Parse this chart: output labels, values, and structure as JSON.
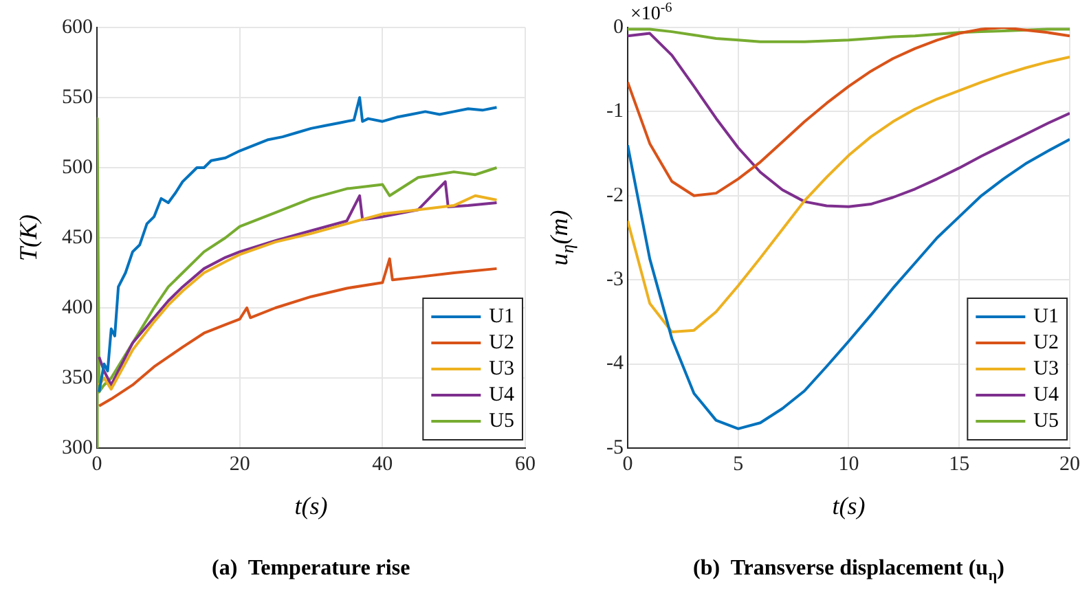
{
  "chart_data": [
    {
      "type": "line",
      "title": "(a)  Temperature rise",
      "xlabel": "t(s)",
      "ylabel": "T(K)",
      "xlim": [
        0,
        60
      ],
      "xticks": [
        0,
        20,
        40,
        60
      ],
      "ylim": [
        300,
        600
      ],
      "yticks": [
        300,
        350,
        400,
        450,
        500,
        550,
        600
      ],
      "grid": true,
      "legend": "bottom right",
      "marker": "none",
      "line_style": "solid",
      "series": [
        {
          "name": "U1",
          "color": "#0072bd",
          "x": [
            0.3,
            1,
            1.5,
            2,
            2.5,
            3,
            4,
            5,
            6,
            7,
            8,
            9,
            10,
            11,
            12,
            13,
            14,
            15,
            16,
            18,
            20,
            22,
            24,
            26,
            28,
            30,
            32,
            34,
            36,
            36.8,
            37.2,
            38,
            40,
            42,
            44,
            46,
            48,
            50,
            52,
            54,
            56
          ],
          "values": [
            340,
            360,
            355,
            385,
            380,
            415,
            425,
            440,
            445,
            460,
            465,
            478,
            475,
            482,
            490,
            495,
            500,
            500,
            505,
            507,
            512,
            516,
            520,
            522,
            525,
            528,
            530,
            532,
            534,
            550,
            533,
            535,
            533,
            536,
            538,
            540,
            538,
            540,
            542,
            541,
            543
          ]
        },
        {
          "name": "U2",
          "color": "#d95319",
          "x": [
            0.3,
            2,
            5,
            8,
            10,
            12,
            15,
            18,
            20,
            21,
            21.5,
            25,
            30,
            35,
            40,
            41,
            41.4,
            45,
            50,
            56
          ],
          "values": [
            330,
            335,
            345,
            358,
            365,
            372,
            382,
            388,
            392,
            400,
            393,
            400,
            408,
            414,
            418,
            435,
            420,
            422,
            425,
            428
          ]
        },
        {
          "name": "U3",
          "color": "#edb120",
          "x": [
            0.3,
            1,
            2,
            5,
            8,
            10,
            12,
            15,
            18,
            20,
            25,
            30,
            35,
            40,
            45,
            50,
            53,
            56
          ],
          "values": [
            345,
            350,
            342,
            370,
            390,
            402,
            412,
            425,
            433,
            438,
            447,
            453,
            460,
            467,
            470,
            473,
            480,
            477
          ]
        },
        {
          "name": "U4",
          "color": "#7e2f8e",
          "x": [
            0.3,
            1,
            2,
            5,
            8,
            10,
            12,
            15,
            18,
            20,
            25,
            30,
            35,
            36.8,
            37.2,
            40,
            45,
            48.8,
            49.2,
            52,
            56
          ],
          "values": [
            365,
            355,
            345,
            375,
            393,
            405,
            415,
            428,
            436,
            440,
            448,
            455,
            462,
            480,
            463,
            465,
            470,
            490,
            472,
            473,
            475
          ]
        },
        {
          "name": "U5",
          "color": "#77ac30",
          "x": [
            0,
            0.05,
            0.3,
            1,
            2,
            5,
            8,
            10,
            12,
            15,
            18,
            20,
            25,
            30,
            35,
            40,
            41,
            45,
            50,
            53,
            56
          ],
          "values": [
            300,
            535,
            340,
            345,
            350,
            375,
            400,
            415,
            425,
            440,
            450,
            458,
            468,
            478,
            485,
            488,
            480,
            493,
            497,
            495,
            500
          ]
        }
      ]
    },
    {
      "type": "line",
      "title": "(b)  Transverse displacement (u$_{η}$)",
      "xlabel": "t(s)",
      "ylabel": "u$_{η}$(m)",
      "annotations": [
        "×10$^{-6}$"
      ],
      "xlim": [
        0,
        20
      ],
      "xticks": [
        0,
        5,
        10,
        15,
        20
      ],
      "ylim": [
        -5,
        0
      ],
      "yticks": [
        -5,
        -4,
        -3,
        -2,
        -1,
        0
      ],
      "grid": true,
      "legend": "bottom right",
      "marker": "none",
      "line_style": "solid",
      "x": [
        0,
        1,
        2,
        3,
        4,
        5,
        6,
        7,
        8,
        9,
        10,
        11,
        12,
        13,
        14,
        15,
        16,
        17,
        18,
        19,
        20
      ],
      "series": [
        {
          "name": "U1",
          "color": "#0072bd",
          "values": [
            -1.4,
            -2.75,
            -3.7,
            -4.35,
            -4.67,
            -4.77,
            -4.7,
            -4.53,
            -4.32,
            -4.03,
            -3.73,
            -3.42,
            -3.1,
            -2.8,
            -2.5,
            -2.25,
            -2.0,
            -1.8,
            -1.62,
            -1.47,
            -1.33
          ]
        },
        {
          "name": "U2",
          "color": "#d95319",
          "values": [
            -0.65,
            -1.38,
            -1.83,
            -2.0,
            -1.97,
            -1.8,
            -1.6,
            -1.36,
            -1.12,
            -0.9,
            -0.7,
            -0.52,
            -0.37,
            -0.25,
            -0.15,
            -0.07,
            -0.02,
            0,
            -0.03,
            -0.06,
            -0.1
          ]
        },
        {
          "name": "U3",
          "color": "#edb120",
          "values": [
            -2.3,
            -3.28,
            -3.62,
            -3.6,
            -3.38,
            -3.07,
            -2.74,
            -2.4,
            -2.06,
            -1.78,
            -1.52,
            -1.3,
            -1.12,
            -0.97,
            -0.85,
            -0.75,
            -0.65,
            -0.56,
            -0.48,
            -0.41,
            -0.35
          ]
        },
        {
          "name": "U4",
          "color": "#7e2f8e",
          "values": [
            -0.1,
            -0.07,
            -0.33,
            -0.7,
            -1.08,
            -1.43,
            -1.72,
            -1.93,
            -2.07,
            -2.12,
            -2.13,
            -2.1,
            -2.02,
            -1.92,
            -1.8,
            -1.67,
            -1.53,
            -1.4,
            -1.27,
            -1.14,
            -1.02
          ]
        },
        {
          "name": "U5",
          "color": "#77ac30",
          "values": [
            -0.02,
            -0.02,
            -0.05,
            -0.09,
            -0.13,
            -0.15,
            -0.17,
            -0.17,
            -0.17,
            -0.16,
            -0.15,
            -0.13,
            -0.11,
            -0.1,
            -0.08,
            -0.06,
            -0.05,
            -0.04,
            -0.03,
            -0.02,
            -0.02
          ]
        }
      ]
    }
  ]
}
